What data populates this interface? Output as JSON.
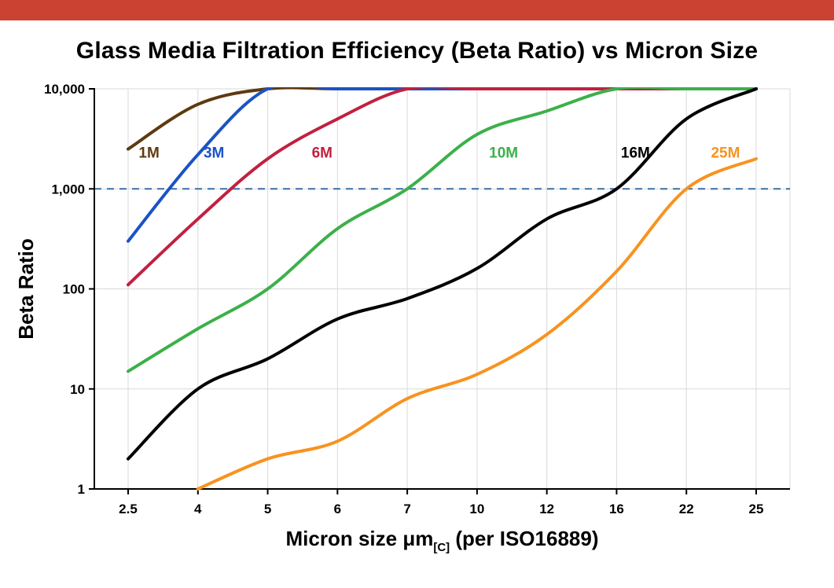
{
  "page": {
    "top_bar_color": "#cb4232"
  },
  "chart_data": {
    "type": "line",
    "title": "Glass Media Filtration Efficiency (Beta Ratio) vs Micron Size",
    "ylabel": "Beta Ratio",
    "xlabel_pre": "Micron size μm",
    "xlabel_sub": "[C]",
    "xlabel_post": " (per ISO16889)",
    "x_categories": [
      "2.5",
      "4",
      "5",
      "6",
      "7",
      "10",
      "12",
      "16",
      "22",
      "25"
    ],
    "y_scale": "log",
    "ylim": [
      1,
      10000
    ],
    "y_ticks": [
      {
        "value": 10000,
        "label": "10,000"
      },
      {
        "value": 1000,
        "label": "1,000"
      },
      {
        "value": 100,
        "label": "100"
      },
      {
        "value": 10,
        "label": "10"
      },
      {
        "value": 1,
        "label": "1"
      }
    ],
    "grid": true,
    "grid_color": "#d9d9d9",
    "axis_color": "#000000",
    "reference_line": {
      "value": 1000,
      "color": "#3a6fa8",
      "style": "dashed"
    },
    "legend_position": "inline-labels",
    "series": [
      {
        "name": "1M",
        "color": "#5e3a10",
        "label_pos": {
          "xi": 0.3,
          "y": 2250
        },
        "values": [
          2500,
          7000,
          10000,
          10000,
          10000,
          10000,
          10000,
          10000,
          10000,
          10000
        ]
      },
      {
        "name": "3M",
        "color": "#1a53c4",
        "label_pos": {
          "xi": 1.23,
          "y": 2250
        },
        "values": [
          300,
          2200,
          10000,
          10000,
          10000,
          10000,
          10000,
          10000,
          10000,
          10000
        ]
      },
      {
        "name": "6M",
        "color": "#c2203f",
        "label_pos": {
          "xi": 2.78,
          "y": 2250
        },
        "values": [
          110,
          500,
          2000,
          5000,
          10000,
          10000,
          10000,
          10000,
          10000,
          10000
        ]
      },
      {
        "name": "10M",
        "color": "#3cb04a",
        "label_pos": {
          "xi": 5.38,
          "y": 2250
        },
        "values": [
          15,
          40,
          100,
          400,
          1000,
          3500,
          6000,
          10000,
          10000,
          10000
        ]
      },
      {
        "name": "16M",
        "color": "#000000",
        "label_pos": {
          "xi": 7.27,
          "y": 2250
        },
        "values": [
          2,
          10,
          20,
          50,
          80,
          160,
          500,
          1000,
          5000,
          10000
        ]
      },
      {
        "name": "25M",
        "color": "#f8931f",
        "label_pos": {
          "xi": 8.56,
          "y": 2250
        },
        "values": [
          null,
          1,
          2,
          3,
          8,
          14,
          35,
          150,
          1000,
          2000
        ]
      }
    ]
  }
}
